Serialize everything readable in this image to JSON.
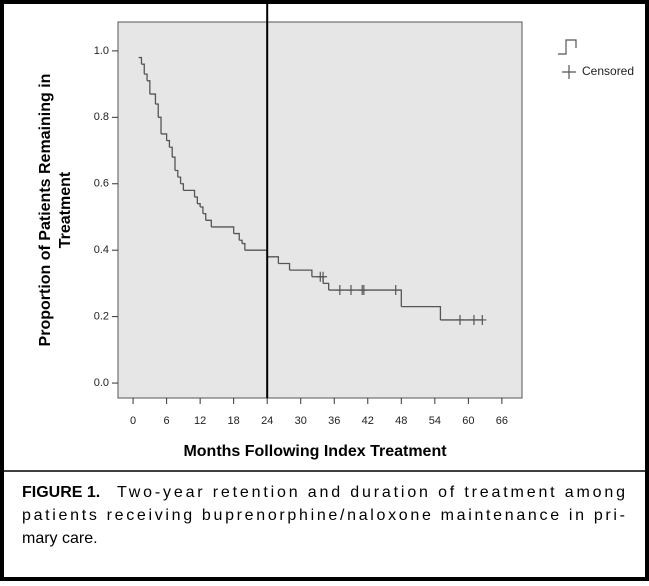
{
  "chart_data": {
    "type": "step",
    "ylabel_lines": [
      "Proportion of Patients Remaining in",
      "Treatment"
    ],
    "xlabel": "Months Following Index Treatment",
    "xlim": [
      -2.7,
      69.6
    ],
    "ylim": [
      -0.045,
      1.087
    ],
    "xticks": [
      0,
      6,
      12,
      18,
      24,
      30,
      36,
      42,
      48,
      54,
      60,
      66
    ],
    "yticks": [
      {
        "value": 0,
        "label": "0.0"
      },
      {
        "value": 0.2,
        "label": "0.2"
      },
      {
        "value": 0.4,
        "label": "0.4"
      },
      {
        "value": 0.6,
        "label": "0.6"
      },
      {
        "value": 0.8,
        "label": "0.8"
      },
      {
        "value": 1,
        "label": "1.0"
      }
    ],
    "vline": 24,
    "series": [
      {
        "color": "#555555",
        "x": [
          1,
          1.5,
          2,
          2.5,
          3,
          4,
          4.5,
          5,
          6,
          6.5,
          7,
          7.5,
          8,
          8.5,
          9,
          11,
          11.5,
          12,
          12.5,
          13,
          14,
          18,
          19,
          19.5,
          20,
          24,
          26,
          28,
          32,
          34,
          35,
          48,
          55,
          62.5
        ],
        "values": [
          0.98,
          0.96,
          0.93,
          0.91,
          0.87,
          0.84,
          0.8,
          0.75,
          0.73,
          0.71,
          0.68,
          0.64,
          0.62,
          0.6,
          0.58,
          0.56,
          0.54,
          0.53,
          0.51,
          0.49,
          0.47,
          0.45,
          0.43,
          0.42,
          0.4,
          0.38,
          0.36,
          0.34,
          0.32,
          0.3,
          0.28,
          0.23,
          0.19,
          0.19
        ]
      }
    ],
    "censored": {
      "name": "Censored",
      "x": [
        33.5,
        34,
        37,
        39,
        41,
        41.3,
        47,
        58.5,
        61,
        62.5
      ],
      "values": [
        0.32,
        0.32,
        0.28,
        0.28,
        0.28,
        0.28,
        0.28,
        0.19,
        0.19,
        0.19
      ]
    },
    "caption_label": "FIGURE 1.",
    "caption_lines": [
      "Two-year retention and duration of treatment among",
      "patients receiving buprenorphine/naloxone maintenance in pri-",
      "mary care."
    ]
  }
}
